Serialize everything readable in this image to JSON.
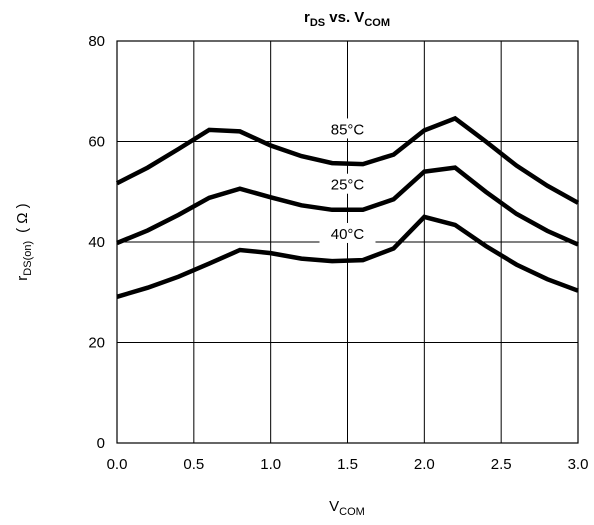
{
  "chart_data": {
    "type": "line",
    "title": {
      "main": "r",
      "main_sub": "DS",
      "mid": " vs. V",
      "mid_sub": "COM"
    },
    "xlabel": {
      "main": "V",
      "sub": "COM"
    },
    "ylabel": {
      "main": "r",
      "sub": "DS(on)",
      "unit": "( Ω )"
    },
    "xlim": [
      0,
      3.0
    ],
    "ylim": [
      0,
      80
    ],
    "x_ticks": [
      "0.0",
      "0.5",
      "1.0",
      "1.5",
      "2.0",
      "2.5",
      "3.0"
    ],
    "y_ticks": [
      "0",
      "20",
      "40",
      "60",
      "80"
    ],
    "grid": true,
    "line_color": "#000000",
    "x": [
      0.0,
      0.2,
      0.4,
      0.6,
      0.8,
      1.0,
      1.2,
      1.4,
      1.6,
      1.8,
      2.0,
      2.2,
      2.4,
      2.6,
      2.8,
      3.0
    ],
    "series": [
      {
        "name": "85°C",
        "label_x": 1.5,
        "label_y": 62.2,
        "values": [
          51.7,
          54.8,
          58.5,
          62.3,
          62.0,
          59.2,
          57.1,
          55.7,
          55.5,
          57.4,
          62.2,
          64.6,
          60.0,
          55.2,
          51.2,
          47.8
        ]
      },
      {
        "name": "25°C",
        "label_x": 1.5,
        "label_y": 51.2,
        "values": [
          39.8,
          42.3,
          45.4,
          48.8,
          50.6,
          48.9,
          47.3,
          46.4,
          46.4,
          48.5,
          54.0,
          54.8,
          50.0,
          45.6,
          42.2,
          39.5
        ]
      },
      {
        "name": "40°C",
        "label_x": 1.5,
        "label_y": 41.4,
        "values": [
          29.1,
          30.9,
          33.1,
          35.7,
          38.4,
          37.8,
          36.7,
          36.2,
          36.4,
          38.7,
          45.0,
          43.4,
          39.2,
          35.5,
          32.6,
          30.3
        ]
      }
    ]
  }
}
